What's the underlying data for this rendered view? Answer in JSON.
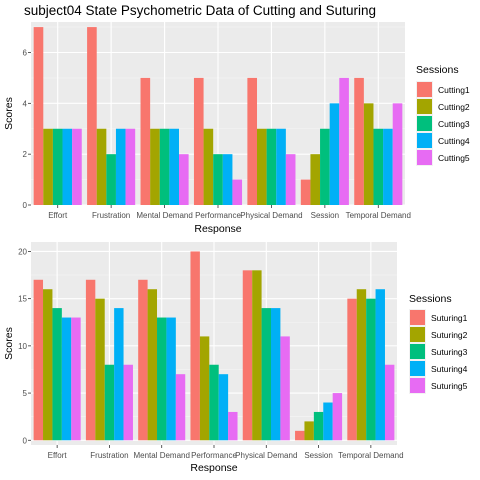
{
  "title": "subject04 State Psychometric Data of Cutting and Suturing",
  "colors": [
    "#F8766D",
    "#A3A500",
    "#00BF7D",
    "#00B0F6",
    "#E76BF3"
  ],
  "chart_data": [
    {
      "type": "bar",
      "title": "subject04 State Psychometric Data of Cutting and Suturing",
      "xlabel": "Response",
      "ylabel": "Scores",
      "ylim": [
        0,
        7.2
      ],
      "yticks": [
        "0",
        "2",
        "4",
        "6"
      ],
      "categories": [
        "Effort",
        "Frustration",
        "Mental Demand",
        "Performance",
        "Physical Demand",
        "Session",
        "Temporal Demand"
      ],
      "legend_title": "Sessions",
      "legend_position": "right",
      "grid": true,
      "series": [
        {
          "name": "Cutting1",
          "values": [
            7,
            7,
            5,
            5,
            5,
            1,
            5
          ]
        },
        {
          "name": "Cutting2",
          "values": [
            3,
            3,
            3,
            3,
            3,
            2,
            4
          ]
        },
        {
          "name": "Cutting3",
          "values": [
            3,
            2,
            3,
            2,
            3,
            3,
            3
          ]
        },
        {
          "name": "Cutting4",
          "values": [
            3,
            3,
            3,
            2,
            3,
            4,
            3
          ]
        },
        {
          "name": "Cutting5",
          "values": [
            3,
            3,
            2,
            1,
            2,
            5,
            4
          ]
        }
      ]
    },
    {
      "type": "bar",
      "title": "",
      "xlabel": "Response",
      "ylabel": "Scores",
      "ylim": [
        -0.5,
        21
      ],
      "yticks": [
        "0",
        "5",
        "10",
        "15",
        "20"
      ],
      "categories": [
        "Effort",
        "Frustration",
        "Mental Demand",
        "Performance",
        "Physical Demand",
        "Session",
        "Temporal Demand"
      ],
      "legend_title": "Sessions",
      "legend_position": "right",
      "grid": true,
      "series": [
        {
          "name": "Suturing1",
          "values": [
            17,
            17,
            17,
            20,
            18,
            1,
            15
          ]
        },
        {
          "name": "Suturing2",
          "values": [
            16,
            15,
            16,
            11,
            18,
            2,
            16
          ]
        },
        {
          "name": "Suturing3",
          "values": [
            14,
            8,
            13,
            8,
            14,
            3,
            15
          ]
        },
        {
          "name": "Suturing4",
          "values": [
            13,
            14,
            13,
            7,
            14,
            4,
            16
          ]
        },
        {
          "name": "Suturing5",
          "values": [
            13,
            8,
            7,
            3,
            11,
            5,
            8
          ]
        }
      ]
    }
  ]
}
